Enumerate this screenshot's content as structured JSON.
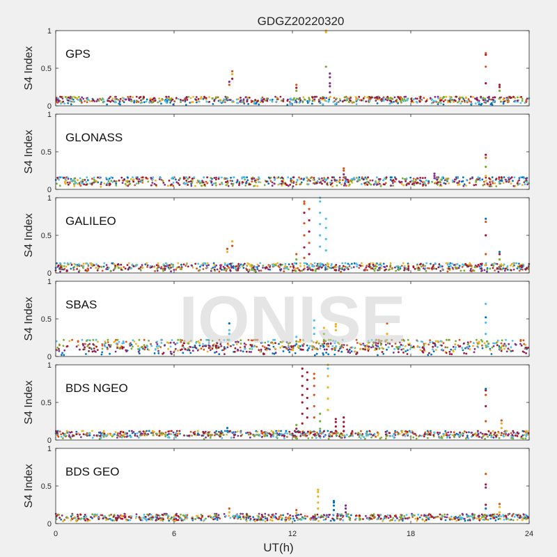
{
  "figure": {
    "title": "GDGZ20220320",
    "watermark": "IONISE",
    "background": "#f0f0f0"
  },
  "colors": [
    "#0072bd",
    "#d95319",
    "#edb120",
    "#7e2f8e",
    "#77ac30",
    "#4dbeee",
    "#a2142f"
  ],
  "chart_data": [
    {
      "type": "scatter",
      "label": "GPS",
      "xlabel": "",
      "ylabel": "S4 Index",
      "xlim": [
        0,
        24
      ],
      "ylim": [
        0,
        1
      ],
      "xticks": [
        0,
        6,
        12,
        18,
        24
      ],
      "yticks": [
        0,
        0.5,
        1
      ],
      "xticklabels_visible": false,
      "grid": false,
      "baseline": {
        "min": 0.03,
        "max": 0.12
      },
      "spikes": [
        {
          "x": 8.8,
          "y": [
            0.28,
            0.32
          ],
          "series": [
            1,
            3
          ]
        },
        {
          "x": 8.95,
          "y": [
            0.36,
            0.42,
            0.46
          ],
          "series": [
            6,
            2,
            1
          ]
        },
        {
          "x": 12.2,
          "y": [
            0.2,
            0.24,
            0.28
          ],
          "series": [
            4,
            6,
            1
          ]
        },
        {
          "x": 13.7,
          "y": [
            0.52,
            0.98,
            1.0
          ],
          "series": [
            4,
            2,
            2
          ]
        },
        {
          "x": 13.9,
          "y": [
            0.18,
            0.26,
            0.3,
            0.38,
            0.43
          ],
          "series": [
            3,
            3,
            3,
            3,
            3
          ]
        },
        {
          "x": 21.8,
          "y": [
            0.3,
            0.52,
            0.68,
            0.7
          ],
          "series": [
            6,
            1,
            6,
            1
          ]
        },
        {
          "x": 22.5,
          "y": [
            0.2,
            0.25,
            0.28
          ],
          "series": [
            4,
            6,
            6
          ]
        }
      ]
    },
    {
      "type": "scatter",
      "label": "GLONASS",
      "xlabel": "",
      "ylabel": "S4 Index",
      "xlim": [
        0,
        24
      ],
      "ylim": [
        0,
        1
      ],
      "xticks": [
        0,
        6,
        12,
        18,
        24
      ],
      "yticks": [
        0,
        0.5,
        1
      ],
      "xticklabels_visible": false,
      "grid": false,
      "baseline": {
        "min": 0.03,
        "max": 0.16
      },
      "spikes": [
        {
          "x": 14.6,
          "y": [
            0.16,
            0.2,
            0.25,
            0.28
          ],
          "series": [
            1,
            3,
            1,
            1
          ]
        },
        {
          "x": 19.2,
          "y": [
            0.15,
            0.18,
            0.21
          ],
          "series": [
            3,
            3,
            3
          ]
        },
        {
          "x": 21.8,
          "y": [
            0.18,
            0.3,
            0.42,
            0.46
          ],
          "series": [
            2,
            4,
            1,
            6
          ]
        },
        {
          "x": 22.6,
          "y": [
            0.12,
            0.16
          ],
          "series": [
            0,
            6
          ]
        }
      ]
    },
    {
      "type": "scatter",
      "label": "GALILEO",
      "xlabel": "",
      "ylabel": "S4 Index",
      "xlim": [
        0,
        24
      ],
      "ylim": [
        0,
        1
      ],
      "xticks": [
        0,
        6,
        12,
        18,
        24
      ],
      "yticks": [
        0,
        0.5,
        1
      ],
      "xticklabels_visible": false,
      "grid": false,
      "baseline": {
        "min": 0.03,
        "max": 0.13
      },
      "spikes": [
        {
          "x": 8.7,
          "y": [
            0.28,
            0.32
          ],
          "series": [
            2,
            1
          ]
        },
        {
          "x": 8.95,
          "y": [
            0.36,
            0.42
          ],
          "series": [
            1,
            2
          ]
        },
        {
          "x": 12.2,
          "y": [
            0.18,
            0.25
          ],
          "series": [
            4,
            1
          ]
        },
        {
          "x": 12.6,
          "y": [
            0.2,
            0.34,
            0.5,
            0.66,
            0.8,
            0.92,
            0.95
          ],
          "series": [
            1,
            6,
            1,
            1,
            6,
            1,
            1
          ]
        },
        {
          "x": 12.85,
          "y": [
            0.25,
            0.4,
            0.55,
            0.7,
            0.85
          ],
          "series": [
            6,
            1,
            6,
            6,
            1
          ]
        },
        {
          "x": 13.4,
          "y": [
            0.35,
            0.5,
            0.65,
            0.8,
            0.95,
            1.0
          ],
          "series": [
            5,
            5,
            5,
            5,
            5,
            5
          ]
        },
        {
          "x": 13.7,
          "y": [
            0.3,
            0.45,
            0.6,
            0.72
          ],
          "series": [
            5,
            5,
            5,
            5
          ]
        },
        {
          "x": 21.8,
          "y": [
            0.25,
            0.5,
            0.68,
            0.72
          ],
          "series": [
            1,
            6,
            1,
            0
          ]
        },
        {
          "x": 22.5,
          "y": [
            0.18,
            0.25,
            0.28
          ],
          "series": [
            4,
            6,
            0
          ]
        }
      ]
    },
    {
      "type": "scatter",
      "label": "SBAS",
      "xlabel": "",
      "ylabel": "S4 Index",
      "xlim": [
        0,
        24
      ],
      "ylim": [
        0,
        1
      ],
      "xticks": [
        0,
        6,
        12,
        18,
        24
      ],
      "yticks": [
        0,
        0.5,
        1
      ],
      "xticklabels_visible": false,
      "grid": false,
      "baseline": {
        "min": 0.05,
        "max": 0.22
      },
      "spikes": [
        {
          "x": 8.8,
          "y": [
            0.3,
            0.35,
            0.44
          ],
          "series": [
            5,
            5,
            0
          ]
        },
        {
          "x": 12.2,
          "y": [
            0.2,
            0.26
          ],
          "series": [
            4,
            5
          ]
        },
        {
          "x": 13.1,
          "y": [
            0.3,
            0.38,
            0.48
          ],
          "series": [
            5,
            5,
            5
          ]
        },
        {
          "x": 13.6,
          "y": [
            0.22,
            0.3,
            0.38
          ],
          "series": [
            4,
            4,
            2
          ]
        },
        {
          "x": 14.2,
          "y": [
            0.35,
            0.4,
            0.43
          ],
          "series": [
            2,
            2,
            2
          ]
        },
        {
          "x": 16.8,
          "y": [
            0.3,
            0.44
          ],
          "series": [
            2,
            1
          ]
        },
        {
          "x": 21.8,
          "y": [
            0.3,
            0.45,
            0.52,
            0.7
          ],
          "series": [
            5,
            5,
            0,
            5
          ]
        }
      ]
    },
    {
      "type": "scatter",
      "label": "BDS NGEO",
      "xlabel": "",
      "ylabel": "S4 Index",
      "xlim": [
        0,
        24
      ],
      "ylim": [
        0,
        1
      ],
      "xticks": [
        0,
        6,
        12,
        18,
        24
      ],
      "yticks": [
        0,
        0.5,
        1
      ],
      "xticklabels_visible": false,
      "grid": false,
      "baseline": {
        "min": 0.03,
        "max": 0.12
      },
      "spikes": [
        {
          "x": 8.7,
          "y": [
            0.12,
            0.16
          ],
          "series": [
            0,
            0
          ]
        },
        {
          "x": 12.2,
          "y": [
            0.15,
            0.2
          ],
          "series": [
            6,
            4
          ]
        },
        {
          "x": 12.5,
          "y": [
            0.22,
            0.35,
            0.5,
            0.6,
            0.72,
            0.85,
            0.95
          ],
          "series": [
            6,
            6,
            6,
            6,
            6,
            6,
            6
          ]
        },
        {
          "x": 12.75,
          "y": [
            0.3,
            0.42,
            0.56,
            0.68,
            0.8,
            0.9
          ],
          "series": [
            6,
            6,
            6,
            6,
            6,
            6
          ]
        },
        {
          "x": 13.1,
          "y": [
            0.3,
            0.45,
            0.6,
            0.72,
            0.82,
            0.88
          ],
          "series": [
            1,
            1,
            1,
            1,
            1,
            1
          ]
        },
        {
          "x": 13.4,
          "y": [
            0.15,
            0.25,
            0.35
          ],
          "series": [
            4,
            4,
            4
          ]
        },
        {
          "x": 13.8,
          "y": [
            0.4,
            0.55,
            0.7,
            0.85,
            0.95,
            1.0
          ],
          "series": [
            2,
            2,
            2,
            2,
            5,
            2
          ]
        },
        {
          "x": 14.2,
          "y": [
            0.12,
            0.18,
            0.24,
            0.28
          ],
          "series": [
            6,
            6,
            6,
            6
          ]
        },
        {
          "x": 14.6,
          "y": [
            0.12,
            0.18,
            0.24,
            0.3
          ],
          "series": [
            6,
            6,
            6,
            6
          ]
        },
        {
          "x": 21.8,
          "y": [
            0.25,
            0.45,
            0.6,
            0.66,
            0.68
          ],
          "series": [
            1,
            6,
            1,
            6,
            0
          ]
        },
        {
          "x": 22.6,
          "y": [
            0.16,
            0.22,
            0.26
          ],
          "series": [
            2,
            2,
            1
          ]
        }
      ]
    },
    {
      "type": "scatter",
      "label": "BDS GEO",
      "xlabel": "UT(h)",
      "ylabel": "S4 Index",
      "xlim": [
        0,
        24
      ],
      "ylim": [
        0,
        1
      ],
      "xticks": [
        0,
        6,
        12,
        18,
        24
      ],
      "yticks": [
        0,
        0.5,
        1
      ],
      "xticklabels_visible": true,
      "grid": false,
      "baseline": {
        "min": 0.04,
        "max": 0.13
      },
      "spikes": [
        {
          "x": 8.8,
          "y": [
            0.15,
            0.2
          ],
          "series": [
            2,
            1
          ]
        },
        {
          "x": 12.2,
          "y": [
            0.14,
            0.18
          ],
          "series": [
            2,
            1
          ]
        },
        {
          "x": 13.3,
          "y": [
            0.2,
            0.28,
            0.36,
            0.42,
            0.45
          ],
          "series": [
            2,
            2,
            2,
            2,
            2
          ]
        },
        {
          "x": 14.1,
          "y": [
            0.18,
            0.24,
            0.28,
            0.3
          ],
          "series": [
            0,
            0,
            0,
            0
          ]
        },
        {
          "x": 14.7,
          "y": [
            0.15,
            0.2,
            0.24
          ],
          "series": [
            3,
            3,
            3
          ]
        },
        {
          "x": 21.8,
          "y": [
            0.2,
            0.25,
            0.48,
            0.52,
            0.66
          ],
          "series": [
            0,
            6,
            3,
            6,
            1
          ]
        },
        {
          "x": 22.5,
          "y": [
            0.15,
            0.22,
            0.26
          ],
          "series": [
            2,
            2,
            1
          ]
        }
      ]
    }
  ]
}
